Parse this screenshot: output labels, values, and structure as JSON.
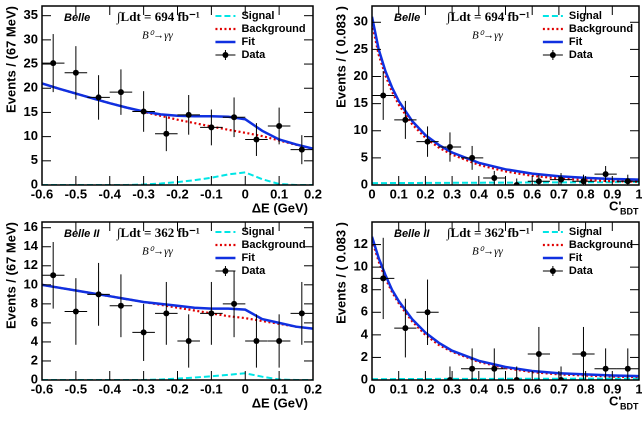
{
  "chart_data": [
    {
      "type": "line",
      "ylabel": "Events / (67 MeV)",
      "xlabel": "ΔE (GeV)",
      "experiment": "Belle",
      "luminosity": "∫Ldt = 694 fb⁻¹",
      "process": "B⁰→γγ",
      "xlim": [
        -0.6,
        0.2
      ],
      "xticks": [
        -0.6,
        -0.5,
        -0.4,
        -0.3,
        -0.2,
        -0.1,
        0,
        0.1,
        0.2
      ],
      "ylim": [
        0,
        37
      ],
      "yticks": [
        0,
        5,
        10,
        15,
        20,
        25,
        30,
        35
      ],
      "x": [
        -0.6,
        -0.55,
        -0.5,
        -0.45,
        -0.4,
        -0.35,
        -0.3,
        -0.25,
        -0.2,
        -0.15,
        -0.1,
        -0.05,
        0,
        0.05,
        0.1,
        0.15,
        0.2
      ],
      "series": [
        {
          "name": "Signal",
          "color": "#00e5e5",
          "style": "dashed",
          "values": [
            0,
            0,
            0,
            0,
            0,
            0,
            0.1,
            0.3,
            0.6,
            1.0,
            1.5,
            2.2,
            2.6,
            1.2,
            0.2,
            0,
            0
          ]
        },
        {
          "name": "Background",
          "color": "#e00000",
          "style": "dotted",
          "values": [
            21,
            19.9,
            18.9,
            17.9,
            16.9,
            16,
            15.1,
            14.3,
            13.5,
            12.8,
            12.1,
            11.4,
            10.8,
            10.1,
            9.2,
            8.3,
            7.5
          ]
        },
        {
          "name": "Fit",
          "color": "#1030e0",
          "style": "solid",
          "values": [
            21,
            19.9,
            18.9,
            17.9,
            16.9,
            16,
            15.2,
            14.6,
            14.3,
            14.2,
            14.2,
            14.1,
            13.6,
            11.2,
            9.4,
            8.4,
            7.5
          ]
        },
        {
          "name": "Data",
          "color": "#000000",
          "style": "points",
          "xerr": 0.0333,
          "x": [
            -0.567,
            -0.5,
            -0.433,
            -0.367,
            -0.3,
            -0.233,
            -0.167,
            -0.1,
            -0.033,
            0.033,
            0.1,
            0.167
          ],
          "values": [
            25.2,
            23.2,
            18.1,
            19.2,
            15.2,
            10.6,
            14.5,
            11.9,
            14,
            9.4,
            12.2,
            7.3
          ],
          "errors": [
            6,
            5.5,
            4.6,
            4.7,
            4.2,
            3.6,
            4.1,
            3.7,
            4.1,
            3.4,
            3.8,
            3.0
          ]
        }
      ]
    },
    {
      "type": "line",
      "ylabel": "Events / ( 0.083 )",
      "xlabel": "C'",
      "xlabel_sub": "BDT",
      "experiment": "Belle",
      "luminosity": "∫Ldt = 694 fb⁻¹",
      "process": "B⁰→γγ",
      "xlim": [
        0,
        1
      ],
      "xticks": [
        0,
        0.1,
        0.2,
        0.3,
        0.4,
        0.5,
        0.6,
        0.7,
        0.8,
        0.9,
        1
      ],
      "ylim": [
        0,
        33
      ],
      "yticks": [
        0,
        5,
        10,
        15,
        20,
        25,
        30
      ],
      "x": [
        0,
        0.025,
        0.05,
        0.075,
        0.1,
        0.15,
        0.2,
        0.25,
        0.3,
        0.4,
        0.5,
        0.6,
        0.7,
        0.8,
        0.9,
        1.0
      ],
      "series": [
        {
          "name": "Signal",
          "color": "#00e5e5",
          "style": "dashed",
          "values": [
            0.35,
            0.35,
            0.35,
            0.36,
            0.36,
            0.37,
            0.38,
            0.39,
            0.4,
            0.42,
            0.44,
            0.46,
            0.48,
            0.5,
            0.52,
            0.55
          ]
        },
        {
          "name": "Background",
          "color": "#e00000",
          "style": "dotted",
          "values": [
            29.8,
            24,
            20.2,
            17.2,
            14.8,
            11.2,
            8.7,
            6.9,
            5.6,
            3.7,
            2.5,
            1.7,
            1.2,
            0.9,
            0.7,
            0.6
          ]
        },
        {
          "name": "Fit",
          "color": "#1030e0",
          "style": "solid",
          "values": [
            31,
            25,
            21,
            18,
            15.5,
            11.8,
            9.2,
            7.4,
            6,
            4.1,
            2.9,
            2.1,
            1.6,
            1.3,
            1.1,
            1.0
          ]
        },
        {
          "name": "Data",
          "color": "#000000",
          "style": "points",
          "xerr": 0.0417,
          "x": [
            0.042,
            0.125,
            0.208,
            0.292,
            0.375,
            0.458,
            0.542,
            0.625,
            0.708,
            0.792,
            0.875,
            0.958
          ],
          "values": [
            16.5,
            12,
            8,
            7,
            5,
            1.3,
            0,
            0.7,
            1,
            0.7,
            2,
            0.7
          ],
          "errors": [
            4.5,
            3.5,
            2.8,
            2.7,
            2.2,
            1.3,
            1.2,
            1.2,
            1.2,
            1.2,
            1.5,
            1.2
          ]
        }
      ]
    },
    {
      "type": "line",
      "ylabel": "Events / (67 MeV)",
      "xlabel": "ΔE (GeV)",
      "experiment": "Belle II",
      "luminosity": "∫Ldt = 362 fb⁻¹",
      "process": "B⁰→γγ",
      "xlim": [
        -0.6,
        0.2
      ],
      "xticks": [
        -0.6,
        -0.5,
        -0.4,
        -0.3,
        -0.2,
        -0.1,
        0,
        0.1,
        0.2
      ],
      "ylim": [
        0,
        16.6
      ],
      "yticks": [
        0,
        2,
        4,
        6,
        8,
        10,
        12,
        14,
        16
      ],
      "x": [
        -0.6,
        -0.55,
        -0.5,
        -0.45,
        -0.4,
        -0.35,
        -0.3,
        -0.25,
        -0.2,
        -0.15,
        -0.1,
        -0.05,
        0,
        0.05,
        0.1,
        0.15,
        0.2
      ],
      "series": [
        {
          "name": "Signal",
          "color": "#00e5e5",
          "style": "dashed",
          "values": [
            0,
            0,
            0,
            0,
            0,
            0,
            0,
            0.05,
            0.15,
            0.25,
            0.4,
            0.55,
            0.7,
            0.35,
            0.05,
            0,
            0
          ]
        },
        {
          "name": "Background",
          "color": "#e00000",
          "style": "dotted",
          "values": [
            10,
            9.7,
            9.4,
            9.1,
            8.8,
            8.5,
            8.2,
            7.9,
            7.6,
            7.3,
            7.0,
            6.7,
            6.5,
            6.2,
            5.9,
            5.6,
            5.4
          ]
        },
        {
          "name": "Fit",
          "color": "#1030e0",
          "style": "solid",
          "values": [
            10,
            9.7,
            9.4,
            9.1,
            8.8,
            8.5,
            8.2,
            8.0,
            7.8,
            7.6,
            7.5,
            7.5,
            7.4,
            6.4,
            6.0,
            5.6,
            5.4
          ]
        },
        {
          "name": "Data",
          "color": "#000000",
          "style": "points",
          "xerr": 0.0333,
          "x": [
            -0.567,
            -0.5,
            -0.433,
            -0.367,
            -0.3,
            -0.233,
            -0.167,
            -0.1,
            -0.033,
            0.033,
            0.1,
            0.167
          ],
          "values": [
            11,
            7.2,
            9,
            7.8,
            5,
            7,
            4.1,
            7,
            8,
            4.1,
            4.1,
            7
          ],
          "errors": [
            3.5,
            3.5,
            3.3,
            3.3,
            3,
            3.3,
            2.8,
            3.3,
            3.5,
            2.8,
            2.8,
            3.3
          ]
        }
      ]
    },
    {
      "type": "line",
      "ylabel": "Events / ( 0.083 )",
      "xlabel": "C'",
      "xlabel_sub": "BDT",
      "experiment": "Belle II",
      "luminosity": "∫Ldt = 362 fb⁻¹",
      "process": "B⁰→γγ",
      "xlim": [
        0,
        1
      ],
      "xticks": [
        0,
        0.1,
        0.2,
        0.3,
        0.4,
        0.5,
        0.6,
        0.7,
        0.8,
        0.9,
        1
      ],
      "ylim": [
        0,
        14
      ],
      "yticks": [
        0,
        2,
        4,
        6,
        8,
        10,
        12
      ],
      "x": [
        0,
        0.025,
        0.05,
        0.075,
        0.1,
        0.15,
        0.2,
        0.25,
        0.3,
        0.4,
        0.5,
        0.6,
        0.7,
        0.8,
        0.9,
        1.0
      ],
      "series": [
        {
          "name": "Signal",
          "color": "#00e5e5",
          "style": "dashed",
          "values": [
            0.08,
            0.08,
            0.08,
            0.08,
            0.09,
            0.09,
            0.09,
            0.1,
            0.1,
            0.1,
            0.11,
            0.11,
            0.11,
            0.12,
            0.12,
            0.12
          ]
        },
        {
          "name": "Background",
          "color": "#e00000",
          "style": "dotted",
          "values": [
            12.4,
            10.5,
            9.0,
            7.8,
            6.8,
            5.2,
            4.0,
            3.1,
            2.5,
            1.6,
            1.05,
            0.7,
            0.5,
            0.4,
            0.3,
            0.25
          ]
        },
        {
          "name": "Fit",
          "color": "#1030e0",
          "style": "solid",
          "values": [
            12.7,
            10.8,
            9.3,
            8.0,
            7.0,
            5.4,
            4.2,
            3.3,
            2.6,
            1.7,
            1.15,
            0.8,
            0.6,
            0.5,
            0.4,
            0.35
          ]
        },
        {
          "name": "Data",
          "color": "#000000",
          "style": "points",
          "xerr": 0.0417,
          "x": [
            0.042,
            0.125,
            0.208,
            0.292,
            0.375,
            0.458,
            0.542,
            0.625,
            0.708,
            0.792,
            0.875,
            0.958
          ],
          "values": [
            9,
            4.6,
            6,
            0,
            1,
            1,
            0,
            2.3,
            0,
            2.3,
            1,
            1
          ],
          "errors": [
            3.6,
            2.6,
            2.9,
            1.2,
            1.8,
            1.8,
            1.2,
            2.4,
            1.2,
            2.4,
            1.8,
            1.8
          ]
        }
      ]
    }
  ]
}
